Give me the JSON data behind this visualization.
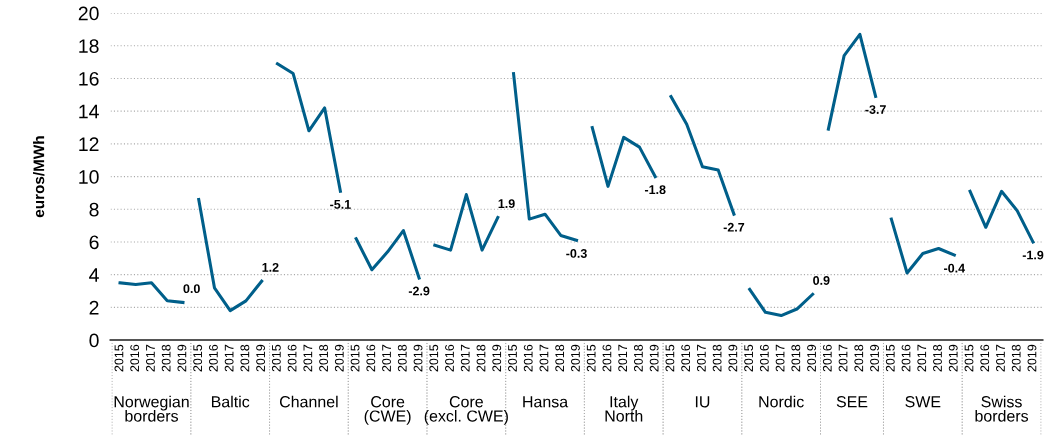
{
  "chart_data": {
    "type": "line",
    "ylabel": "euros/MWh",
    "categories": [
      "2015",
      "2016",
      "2017",
      "2018",
      "2019",
      "2015",
      "2016",
      "2017",
      "2018",
      "2019",
      "2015",
      "2016",
      "2017",
      "2018",
      "2019",
      "2015",
      "2016",
      "2017",
      "2018",
      "2019",
      "2015",
      "2016",
      "2017",
      "2018",
      "2019",
      "2015",
      "2016",
      "2017",
      "2018",
      "2019",
      "2015",
      "2016",
      "2017",
      "2018",
      "2019",
      "2015",
      "2016",
      "2017",
      "2018",
      "2019",
      "2015",
      "2016",
      "2017",
      "2018",
      "2019",
      "2016",
      "2017",
      "2018",
      "2019",
      "2015",
      "2016",
      "2017",
      "2018",
      "2019",
      "2015",
      "2016",
      "2017",
      "2018",
      "2019"
    ],
    "ylim": [
      0,
      20
    ],
    "yticks": [
      0,
      2,
      4,
      6,
      8,
      10,
      12,
      14,
      16,
      18,
      20
    ],
    "grid": "y",
    "annotations": [
      "Norwegian\nborders",
      "Baltic",
      "Channel",
      "Core\n(CWE)",
      "Core\n(excl. CWE)",
      "Hansa",
      "Italy\nNorth",
      "IU",
      "Nordic",
      "SEE",
      "SWE",
      "Swiss\nborders",
      "0.0",
      "1.2",
      "-5.1",
      "-2.9",
      "1.9",
      "-0.3",
      "-1.8",
      "-2.7",
      "0.9",
      "-3.7",
      "-0.4",
      "-1.9"
    ],
    "series": [
      {
        "color": "#005f8a",
        "values": [
          3.5,
          3.4,
          3.5,
          2.4,
          2.3,
          null,
          null,
          null,
          null,
          null,
          null,
          null,
          null,
          null,
          null,
          null,
          null,
          null,
          null,
          null,
          null,
          null,
          null,
          null,
          null,
          null,
          null,
          null,
          null,
          null,
          null,
          null,
          null,
          null,
          null,
          null,
          null,
          null,
          null,
          null,
          null,
          null,
          null,
          null,
          null,
          null,
          null,
          null,
          null,
          null,
          null,
          null,
          null,
          null,
          null,
          null,
          null,
          null,
          null
        ]
      },
      {
        "color": "#005f8a",
        "values": [
          null,
          null,
          null,
          null,
          null,
          8.6,
          3.2,
          1.8,
          2.4,
          3.6,
          null,
          null,
          null,
          null,
          null,
          null,
          null,
          null,
          null,
          null,
          null,
          null,
          null,
          null,
          null,
          null,
          null,
          null,
          null,
          null,
          null,
          null,
          null,
          null,
          null,
          null,
          null,
          null,
          null,
          null,
          null,
          null,
          null,
          null,
          null,
          null,
          null,
          null,
          null,
          null,
          null,
          null,
          null,
          null,
          null,
          null,
          null,
          null,
          null
        ]
      },
      {
        "color": "#005f8a",
        "values": [
          null,
          null,
          null,
          null,
          null,
          null,
          null,
          null,
          null,
          null,
          16.9,
          16.3,
          12.8,
          14.2,
          9.1,
          null,
          null,
          null,
          null,
          null,
          null,
          null,
          null,
          null,
          null,
          null,
          null,
          null,
          null,
          null,
          null,
          null,
          null,
          null,
          null,
          null,
          null,
          null,
          null,
          null,
          null,
          null,
          null,
          null,
          null,
          null,
          null,
          null,
          null,
          null,
          null,
          null,
          null,
          null,
          null,
          null,
          null,
          null,
          null
        ]
      },
      {
        "color": "#005f8a",
        "values": [
          null,
          null,
          null,
          null,
          null,
          null,
          null,
          null,
          null,
          null,
          null,
          null,
          null,
          null,
          null,
          6.2,
          4.3,
          5.4,
          6.7,
          3.8,
          null,
          null,
          null,
          null,
          null,
          null,
          null,
          null,
          null,
          null,
          null,
          null,
          null,
          null,
          null,
          null,
          null,
          null,
          null,
          null,
          null,
          null,
          null,
          null,
          null,
          null,
          null,
          null,
          null,
          null,
          null,
          null,
          null,
          null,
          null,
          null,
          null,
          null,
          null
        ]
      },
      {
        "color": "#005f8a",
        "values": [
          null,
          null,
          null,
          null,
          null,
          null,
          null,
          null,
          null,
          null,
          null,
          null,
          null,
          null,
          null,
          null,
          null,
          null,
          null,
          null,
          5.8,
          5.5,
          8.9,
          5.5,
          7.5,
          null,
          null,
          null,
          null,
          null,
          null,
          null,
          null,
          null,
          null,
          null,
          null,
          null,
          null,
          null,
          null,
          null,
          null,
          null,
          null,
          null,
          null,
          null,
          null,
          null,
          null,
          null,
          null,
          null,
          null,
          null,
          null,
          null,
          null
        ]
      },
      {
        "color": "#005f8a",
        "values": [
          null,
          null,
          null,
          null,
          null,
          null,
          null,
          null,
          null,
          null,
          null,
          null,
          null,
          null,
          null,
          null,
          null,
          null,
          null,
          null,
          null,
          null,
          null,
          null,
          null,
          16.3,
          7.4,
          7.7,
          6.4,
          6.1,
          null,
          null,
          null,
          null,
          null,
          null,
          null,
          null,
          null,
          null,
          null,
          null,
          null,
          null,
          null,
          null,
          null,
          null,
          null,
          null,
          null,
          null,
          null,
          null,
          null,
          null,
          null,
          null,
          null
        ]
      },
      {
        "color": "#005f8a",
        "values": [
          null,
          null,
          null,
          null,
          null,
          null,
          null,
          null,
          null,
          null,
          null,
          null,
          null,
          null,
          null,
          null,
          null,
          null,
          null,
          null,
          null,
          null,
          null,
          null,
          null,
          null,
          null,
          null,
          null,
          null,
          13.0,
          9.4,
          12.4,
          11.8,
          10.0,
          null,
          null,
          null,
          null,
          null,
          null,
          null,
          null,
          null,
          null,
          null,
          null,
          null,
          null,
          null,
          null,
          null,
          null,
          null,
          null,
          null,
          null,
          null,
          null
        ]
      },
      {
        "color": "#005f8a",
        "values": [
          null,
          null,
          null,
          null,
          null,
          null,
          null,
          null,
          null,
          null,
          null,
          null,
          null,
          null,
          null,
          null,
          null,
          null,
          null,
          null,
          null,
          null,
          null,
          null,
          null,
          null,
          null,
          null,
          null,
          null,
          null,
          null,
          null,
          null,
          null,
          14.9,
          13.2,
          10.6,
          10.4,
          7.7,
          null,
          null,
          null,
          null,
          null,
          null,
          null,
          null,
          null,
          null,
          null,
          null,
          null,
          null,
          null,
          null,
          null,
          null,
          null
        ]
      },
      {
        "color": "#005f8a",
        "values": [
          null,
          null,
          null,
          null,
          null,
          null,
          null,
          null,
          null,
          null,
          null,
          null,
          null,
          null,
          null,
          null,
          null,
          null,
          null,
          null,
          null,
          null,
          null,
          null,
          null,
          null,
          null,
          null,
          null,
          null,
          null,
          null,
          null,
          null,
          null,
          null,
          null,
          null,
          null,
          null,
          3.1,
          1.7,
          1.5,
          1.9,
          2.8,
          null,
          null,
          null,
          null,
          null,
          null,
          null,
          null,
          null,
          null,
          null,
          null,
          null,
          null
        ]
      },
      {
        "color": "#005f8a",
        "values": [
          null,
          null,
          null,
          null,
          null,
          null,
          null,
          null,
          null,
          null,
          null,
          null,
          null,
          null,
          null,
          null,
          null,
          null,
          null,
          null,
          null,
          null,
          null,
          null,
          null,
          null,
          null,
          null,
          null,
          null,
          null,
          null,
          null,
          null,
          null,
          null,
          null,
          null,
          null,
          null,
          null,
          null,
          null,
          null,
          null,
          12.9,
          17.4,
          18.7,
          14.9,
          null,
          null,
          null,
          null,
          null,
          null,
          null,
          null,
          null,
          null
        ]
      },
      {
        "color": "#005f8a",
        "values": [
          null,
          null,
          null,
          null,
          null,
          null,
          null,
          null,
          null,
          null,
          null,
          null,
          null,
          null,
          null,
          null,
          null,
          null,
          null,
          null,
          null,
          null,
          null,
          null,
          null,
          null,
          null,
          null,
          null,
          null,
          null,
          null,
          null,
          null,
          null,
          null,
          null,
          null,
          null,
          null,
          null,
          null,
          null,
          null,
          null,
          null,
          null,
          null,
          null,
          7.4,
          4.1,
          5.3,
          5.6,
          5.2,
          null,
          null,
          null,
          null,
          null
        ]
      },
      {
        "color": "#005f8a",
        "values": [
          null,
          null,
          null,
          null,
          null,
          null,
          null,
          null,
          null,
          null,
          null,
          null,
          null,
          null,
          null,
          null,
          null,
          null,
          null,
          null,
          null,
          null,
          null,
          null,
          null,
          null,
          null,
          null,
          null,
          null,
          null,
          null,
          null,
          null,
          null,
          null,
          null,
          null,
          null,
          null,
          null,
          null,
          null,
          null,
          null,
          null,
          null,
          null,
          null,
          null,
          null,
          null,
          null,
          null,
          9.1,
          6.9,
          9.1,
          7.9,
          6.0
        ]
      }
    ]
  }
}
